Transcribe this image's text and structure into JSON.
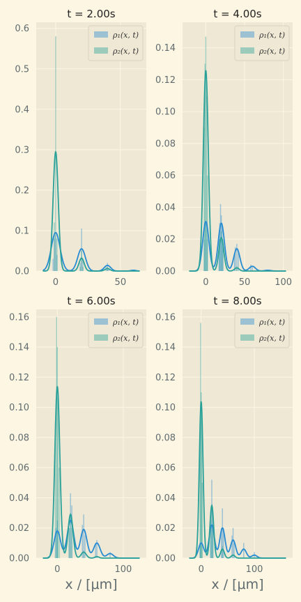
{
  "colors": {
    "figure_bg": "#fdf6e3",
    "axes_bg": "#eee8d5",
    "grid": "#fdf6e3",
    "rho1": "#268bd2",
    "rho2": "#2aa198",
    "text": "#5f6b6e"
  },
  "legend_labels": [
    "ρ₁(x, t)",
    "ρ₂(x, t)"
  ],
  "xlabel": "x / [μm]",
  "chart_data": [
    {
      "type": "histogram+kde",
      "title": "t = 2.00s",
      "xlim": [
        -15,
        70
      ],
      "ylim": [
        0,
        0.615
      ],
      "xticks": [
        0,
        50
      ],
      "yticks": [
        0.0,
        0.1,
        0.2,
        0.3,
        0.4,
        0.5,
        0.6
      ],
      "ytick_labels": [
        "0.0",
        "0.1",
        "0.2",
        "0.3",
        "0.4",
        "0.5",
        "0.6"
      ],
      "legend_position": "top-right",
      "series": [
        {
          "name": "ρ₁(x, t)",
          "kde_peaks": [
            [
              0,
              0.095,
              3.4
            ],
            [
              20,
              0.055,
              3.0
            ],
            [
              40,
              0.014,
              2.5
            ],
            [
              60,
              0.002,
              2
            ]
          ],
          "bins": [
            [
              -2,
              0.03
            ],
            [
              -1,
              0.08
            ],
            [
              0,
              0.09
            ],
            [
              1,
              0.04
            ],
            [
              19,
              0.02
            ],
            [
              20,
              0.105
            ],
            [
              21,
              0.03
            ],
            [
              39,
              0.01
            ],
            [
              40,
              0.02
            ],
            [
              41,
              0.008
            ]
          ]
        },
        {
          "name": "ρ₂(x, t)",
          "kde_peaks": [
            [
              0,
              0.295,
              2.0
            ],
            [
              20,
              0.032,
              2.0
            ],
            [
              40,
              0.006,
              2.0
            ]
          ],
          "bins": [
            [
              -1,
              0.12
            ],
            [
              0,
              0.58
            ],
            [
              1,
              0.08
            ],
            [
              19,
              0.01
            ],
            [
              20,
              0.05
            ],
            [
              21,
              0.01
            ],
            [
              40,
              0.01
            ]
          ]
        }
      ]
    },
    {
      "type": "histogram+kde",
      "title": "t = 4.00s",
      "xlim": [
        -30,
        112
      ],
      "ylim": [
        0,
        0.156
      ],
      "xticks": [
        0,
        50,
        100
      ],
      "yticks": [
        0.0,
        0.02,
        0.04,
        0.06,
        0.08,
        0.1,
        0.12,
        0.14
      ],
      "ytick_labels": [
        "0.00",
        "0.02",
        "0.04",
        "0.06",
        "0.08",
        "0.10",
        "0.12",
        "0.14"
      ],
      "legend_position": "top-right",
      "series": [
        {
          "name": "ρ₁(x, t)",
          "kde_peaks": [
            [
              0,
              0.031,
              4.0
            ],
            [
              20,
              0.03,
              4.0
            ],
            [
              40,
              0.014,
              4.0
            ],
            [
              60,
              0.003,
              4.0
            ],
            [
              80,
              0.0005,
              4
            ]
          ],
          "bins": [
            [
              -2,
              0.02
            ],
            [
              0,
              0.03
            ],
            [
              2,
              0.02
            ],
            [
              17,
              0.02
            ],
            [
              18,
              0.03
            ],
            [
              19,
              0.042
            ],
            [
              20,
              0.035
            ],
            [
              21,
              0.03
            ],
            [
              22,
              0.02
            ],
            [
              37,
              0.01
            ],
            [
              38,
              0.015
            ],
            [
              40,
              0.017
            ],
            [
              42,
              0.012
            ],
            [
              58,
              0.004
            ],
            [
              60,
              0.003
            ]
          ]
        },
        {
          "name": "ρ₂(x, t)",
          "kde_peaks": [
            [
              0,
              0.126,
              3.2
            ],
            [
              20,
              0.021,
              3.2
            ],
            [
              40,
              0.002,
              3.0
            ]
          ],
          "bins": [
            [
              -2,
              0.09
            ],
            [
              -1,
              0.13
            ],
            [
              0,
              0.147
            ],
            [
              1,
              0.11
            ],
            [
              2,
              0.06
            ],
            [
              18,
              0.02
            ],
            [
              20,
              0.025
            ],
            [
              22,
              0.015
            ],
            [
              40,
              0.003
            ]
          ]
        }
      ]
    },
    {
      "type": "histogram+kde",
      "title": "t = 6.00s",
      "xlim": [
        -32,
        135
      ],
      "ylim": [
        0,
        0.165
      ],
      "xticks": [
        0,
        100
      ],
      "yticks": [
        0.0,
        0.02,
        0.04,
        0.06,
        0.08,
        0.1,
        0.12,
        0.14,
        0.16
      ],
      "ytick_labels": [
        "0.00",
        "0.02",
        "0.04",
        "0.06",
        "0.08",
        "0.10",
        "0.12",
        "0.14",
        "0.16"
      ],
      "legend_position": "top-right",
      "series": [
        {
          "name": "ρ₁(x, t)",
          "kde_peaks": [
            [
              0,
              0.018,
              5.0
            ],
            [
              20,
              0.025,
              5.0
            ],
            [
              40,
              0.019,
              5.0
            ],
            [
              60,
              0.01,
              5.0
            ],
            [
              80,
              0.003,
              5.0
            ]
          ],
          "bins": [
            [
              -2,
              0.02
            ],
            [
              0,
              0.025
            ],
            [
              18,
              0.02
            ],
            [
              20,
              0.043
            ],
            [
              22,
              0.035
            ],
            [
              38,
              0.022
            ],
            [
              40,
              0.029
            ],
            [
              42,
              0.015
            ],
            [
              58,
              0.01
            ],
            [
              60,
              0.012
            ],
            [
              80,
              0.004
            ]
          ]
        },
        {
          "name": "ρ₂(x, t)",
          "kde_peaks": [
            [
              0,
              0.114,
              3.8
            ],
            [
              20,
              0.029,
              3.8
            ],
            [
              40,
              0.004,
              3.8
            ],
            [
              60,
              0.001,
              3.0
            ]
          ],
          "bins": [
            [
              -3,
              0.09
            ],
            [
              -1,
              0.16
            ],
            [
              0,
              0.14
            ],
            [
              1,
              0.11
            ],
            [
              3,
              0.06
            ],
            [
              18,
              0.02
            ],
            [
              20,
              0.03
            ],
            [
              22,
              0.02
            ],
            [
              40,
              0.005
            ]
          ]
        }
      ]
    },
    {
      "type": "histogram+kde",
      "title": "t = 8.00s",
      "xlim": [
        -35,
        172
      ],
      "ylim": [
        0,
        0.165
      ],
      "xticks": [
        0,
        100
      ],
      "yticks": [
        0.0,
        0.02,
        0.04,
        0.06,
        0.08,
        0.1,
        0.12,
        0.14,
        0.16
      ],
      "ytick_labels": [
        "0.00",
        "0.02",
        "0.04",
        "0.06",
        "0.08",
        "0.10",
        "0.12",
        "0.14",
        "0.16"
      ],
      "legend_position": "top-right",
      "series": [
        {
          "name": "ρ₁(x, t)",
          "kde_peaks": [
            [
              0,
              0.01,
              5.0
            ],
            [
              20,
              0.022,
              5.0
            ],
            [
              40,
              0.02,
              5.0
            ],
            [
              60,
              0.012,
              5.0
            ],
            [
              80,
              0.006,
              5.0
            ],
            [
              100,
              0.002,
              5.0
            ]
          ],
          "bins": [
            [
              -2,
              0.01
            ],
            [
              18,
              0.025
            ],
            [
              20,
              0.052
            ],
            [
              22,
              0.03
            ],
            [
              38,
              0.02
            ],
            [
              40,
              0.033
            ],
            [
              42,
              0.02
            ],
            [
              58,
              0.015
            ],
            [
              60,
              0.02
            ],
            [
              62,
              0.01
            ],
            [
              80,
              0.01
            ],
            [
              100,
              0.004
            ]
          ]
        },
        {
          "name": "ρ₂(x, t)",
          "kde_peaks": [
            [
              0,
              0.104,
              3.5
            ],
            [
              20,
              0.035,
              3.5
            ],
            [
              40,
              0.006,
              3.5
            ],
            [
              60,
              0.002,
              3.5
            ]
          ],
          "bins": [
            [
              -2,
              0.09
            ],
            [
              -1,
              0.156
            ],
            [
              0,
              0.11
            ],
            [
              1,
              0.1
            ],
            [
              2,
              0.05
            ],
            [
              18,
              0.02
            ],
            [
              20,
              0.035
            ],
            [
              22,
              0.02
            ],
            [
              40,
              0.008
            ]
          ]
        }
      ]
    }
  ]
}
